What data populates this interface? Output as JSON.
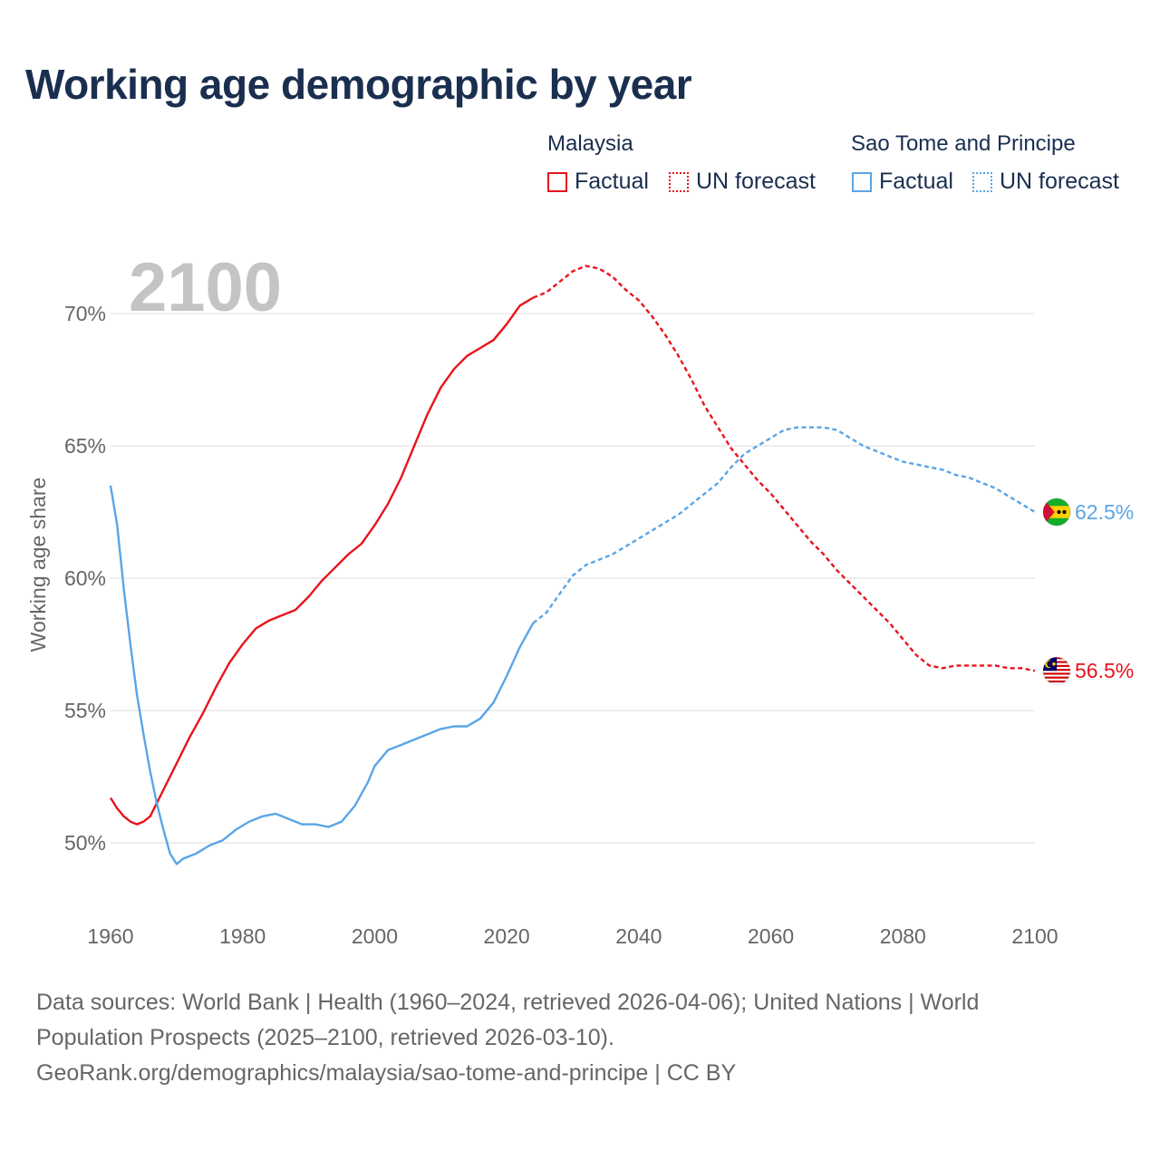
{
  "title": "Working age demographic by year",
  "legend": {
    "groups": [
      {
        "name": "Malaysia",
        "factual_label": "Factual",
        "forecast_label": "UN forecast",
        "color": "#e8141c"
      },
      {
        "name": "Sao Tome and Principe",
        "factual_label": "Factual",
        "forecast_label": "UN forecast",
        "color": "#5aa5e6"
      }
    ]
  },
  "sources": {
    "line1": "Data sources: World Bank | Health (1960–2024, retrieved 2026-04-06); United Nations | World",
    "line2": "Population Prospects (2025–2100, retrieved 2026-03-10).",
    "line3": "GeoRank.org/demographics/malaysia/sao-tome-and-principe | CC BY"
  },
  "chart_data": {
    "type": "line",
    "title": "Working age demographic by year",
    "current_year_label": "2100",
    "xlabel": "",
    "ylabel": "Working age share",
    "xlim": [
      1960,
      2100
    ],
    "ylim": [
      47,
      72
    ],
    "x_ticks": [
      1960,
      1980,
      2000,
      2020,
      2040,
      2060,
      2080,
      2100
    ],
    "x_tick_labels": [
      "1960",
      "1980",
      "2000",
      "2020",
      "2040",
      "2060",
      "2080",
      "2100"
    ],
    "y_ticks": [
      50,
      55,
      60,
      65,
      70
    ],
    "y_tick_labels": [
      "50%",
      "55%",
      "60%",
      "65%",
      "70%"
    ],
    "forecast_start": 2024,
    "series": [
      {
        "name": "Malaysia",
        "color": "#e8141c",
        "end_label": "56.5%",
        "flag": "malaysia-flag",
        "points": [
          [
            1960,
            51.7
          ],
          [
            1961,
            51.3
          ],
          [
            1962,
            51.0
          ],
          [
            1963,
            50.8
          ],
          [
            1964,
            50.7
          ],
          [
            1965,
            50.8
          ],
          [
            1966,
            51.0
          ],
          [
            1967,
            51.5
          ],
          [
            1968,
            52.0
          ],
          [
            1969,
            52.5
          ],
          [
            1970,
            53.0
          ],
          [
            1972,
            54.0
          ],
          [
            1974,
            54.9
          ],
          [
            1976,
            55.9
          ],
          [
            1978,
            56.8
          ],
          [
            1980,
            57.5
          ],
          [
            1982,
            58.1
          ],
          [
            1984,
            58.4
          ],
          [
            1986,
            58.6
          ],
          [
            1988,
            58.8
          ],
          [
            1990,
            59.3
          ],
          [
            1992,
            59.9
          ],
          [
            1994,
            60.4
          ],
          [
            1996,
            60.9
          ],
          [
            1998,
            61.3
          ],
          [
            2000,
            62.0
          ],
          [
            2002,
            62.8
          ],
          [
            2004,
            63.8
          ],
          [
            2006,
            65.0
          ],
          [
            2008,
            66.2
          ],
          [
            2010,
            67.2
          ],
          [
            2012,
            67.9
          ],
          [
            2014,
            68.4
          ],
          [
            2016,
            68.7
          ],
          [
            2018,
            69.0
          ],
          [
            2020,
            69.6
          ],
          [
            2022,
            70.3
          ],
          [
            2024,
            70.6
          ],
          [
            2026,
            70.8
          ],
          [
            2028,
            71.2
          ],
          [
            2030,
            71.6
          ],
          [
            2032,
            71.8
          ],
          [
            2034,
            71.7
          ],
          [
            2036,
            71.4
          ],
          [
            2038,
            70.9
          ],
          [
            2040,
            70.5
          ],
          [
            2042,
            69.9
          ],
          [
            2044,
            69.2
          ],
          [
            2046,
            68.4
          ],
          [
            2048,
            67.5
          ],
          [
            2050,
            66.5
          ],
          [
            2052,
            65.7
          ],
          [
            2054,
            64.9
          ],
          [
            2056,
            64.3
          ],
          [
            2058,
            63.7
          ],
          [
            2060,
            63.2
          ],
          [
            2062,
            62.6
          ],
          [
            2064,
            62.0
          ],
          [
            2066,
            61.4
          ],
          [
            2068,
            60.9
          ],
          [
            2070,
            60.3
          ],
          [
            2072,
            59.8
          ],
          [
            2074,
            59.3
          ],
          [
            2076,
            58.8
          ],
          [
            2078,
            58.3
          ],
          [
            2080,
            57.7
          ],
          [
            2082,
            57.1
          ],
          [
            2084,
            56.7
          ],
          [
            2086,
            56.6
          ],
          [
            2088,
            56.7
          ],
          [
            2090,
            56.7
          ],
          [
            2092,
            56.7
          ],
          [
            2094,
            56.7
          ],
          [
            2096,
            56.6
          ],
          [
            2098,
            56.6
          ],
          [
            2100,
            56.5
          ]
        ]
      },
      {
        "name": "Sao Tome and Principe",
        "color": "#5aa5e6",
        "end_label": "62.5%",
        "flag": "sao-tome-and-principe-flag",
        "points": [
          [
            1960,
            63.5
          ],
          [
            1961,
            62.0
          ],
          [
            1962,
            59.6
          ],
          [
            1963,
            57.5
          ],
          [
            1964,
            55.6
          ],
          [
            1965,
            54.1
          ],
          [
            1966,
            52.7
          ],
          [
            1967,
            51.5
          ],
          [
            1968,
            50.5
          ],
          [
            1969,
            49.6
          ],
          [
            1970,
            49.2
          ],
          [
            1971,
            49.4
          ],
          [
            1973,
            49.6
          ],
          [
            1975,
            49.9
          ],
          [
            1977,
            50.1
          ],
          [
            1979,
            50.5
          ],
          [
            1981,
            50.8
          ],
          [
            1983,
            51.0
          ],
          [
            1985,
            51.1
          ],
          [
            1987,
            50.9
          ],
          [
            1989,
            50.7
          ],
          [
            1991,
            50.7
          ],
          [
            1993,
            50.6
          ],
          [
            1995,
            50.8
          ],
          [
            1997,
            51.4
          ],
          [
            1999,
            52.3
          ],
          [
            2000,
            52.9
          ],
          [
            2002,
            53.5
          ],
          [
            2004,
            53.7
          ],
          [
            2006,
            53.9
          ],
          [
            2008,
            54.1
          ],
          [
            2010,
            54.3
          ],
          [
            2012,
            54.4
          ],
          [
            2014,
            54.4
          ],
          [
            2016,
            54.7
          ],
          [
            2018,
            55.3
          ],
          [
            2020,
            56.3
          ],
          [
            2022,
            57.4
          ],
          [
            2024,
            58.3
          ],
          [
            2026,
            58.7
          ],
          [
            2028,
            59.4
          ],
          [
            2030,
            60.1
          ],
          [
            2032,
            60.5
          ],
          [
            2034,
            60.7
          ],
          [
            2036,
            60.9
          ],
          [
            2038,
            61.2
          ],
          [
            2040,
            61.5
          ],
          [
            2042,
            61.8
          ],
          [
            2044,
            62.1
          ],
          [
            2046,
            62.4
          ],
          [
            2048,
            62.8
          ],
          [
            2050,
            63.2
          ],
          [
            2052,
            63.6
          ],
          [
            2054,
            64.2
          ],
          [
            2056,
            64.7
          ],
          [
            2058,
            65.0
          ],
          [
            2060,
            65.3
          ],
          [
            2062,
            65.6
          ],
          [
            2064,
            65.7
          ],
          [
            2066,
            65.7
          ],
          [
            2068,
            65.7
          ],
          [
            2070,
            65.6
          ],
          [
            2072,
            65.3
          ],
          [
            2074,
            65.0
          ],
          [
            2076,
            64.8
          ],
          [
            2078,
            64.6
          ],
          [
            2080,
            64.4
          ],
          [
            2082,
            64.3
          ],
          [
            2084,
            64.2
          ],
          [
            2086,
            64.1
          ],
          [
            2088,
            63.9
          ],
          [
            2090,
            63.8
          ],
          [
            2092,
            63.6
          ],
          [
            2094,
            63.4
          ],
          [
            2096,
            63.1
          ],
          [
            2098,
            62.8
          ],
          [
            2100,
            62.5
          ]
        ]
      }
    ]
  }
}
